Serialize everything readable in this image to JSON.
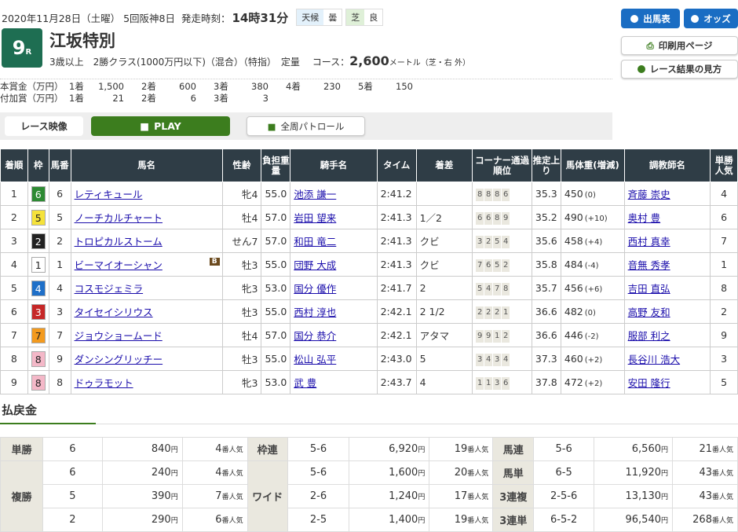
{
  "header": {
    "date": "2020年11月28日（土曜）",
    "meeting": "5回阪神8日",
    "start_label": "発走時刻：",
    "start_time": "14時31分",
    "weather_label": "天候",
    "weather": "曇",
    "surface_label": "芝",
    "condition": "良",
    "race_no": "9",
    "race_suffix": "R",
    "race_name": "江坂特別",
    "conditions": "3歳以上　2勝クラス(1000万円以下)（混合）（特指）　定量",
    "course_label": "コース：",
    "distance": "2,600",
    "course_unit": "メートル（芝・右 外）"
  },
  "prize": {
    "main_label": "本賞金（万円）",
    "main": [
      [
        "1着",
        "1,500"
      ],
      [
        "2着",
        "600"
      ],
      [
        "3着",
        "380"
      ],
      [
        "4着",
        "230"
      ],
      [
        "5着",
        "150"
      ]
    ],
    "extra_label": "付加賞（万円）",
    "extra": [
      [
        "1着",
        "21"
      ],
      [
        "2着",
        "6"
      ],
      [
        "3着",
        "3"
      ]
    ]
  },
  "buttons": {
    "entries": "出馬表",
    "odds": "オッズ",
    "print": "印刷用ページ",
    "howto": "レース結果の見方"
  },
  "video": {
    "label": "レース映像",
    "play": "PLAY",
    "patrol": "全周パトロール"
  },
  "colors": {
    "blue": "#1a6dc3",
    "green": "#3c7d1e",
    "dark": "#2f3d46"
  },
  "table": {
    "headers": [
      "着順",
      "枠",
      "馬番",
      "馬名",
      "性齢",
      "負担重量",
      "騎手名",
      "タイム",
      "着差",
      "コーナー通過順位",
      "推定上り",
      "馬体重(増減)",
      "調教師名",
      "単勝人気"
    ],
    "rows": [
      [
        "1",
        "6",
        "6",
        "レティキュール",
        "",
        "牝4",
        "55.0",
        "池添 謙一",
        "2:41.2",
        "",
        "8 8 8 6",
        "35.3",
        "450",
        "(0)",
        "斉藤 崇史",
        "4"
      ],
      [
        "2",
        "5",
        "5",
        "ノーチカルチャート",
        "",
        "牡4",
        "57.0",
        "岩田 望来",
        "2:41.3",
        "1／2",
        "6 6 8 9",
        "35.2",
        "490",
        "(+10)",
        "奥村 豊",
        "6"
      ],
      [
        "3",
        "2",
        "2",
        "トロピカルストーム",
        "",
        "せん7",
        "57.0",
        "和田 竜二",
        "2:41.3",
        "クビ",
        "3 2 5 4",
        "35.6",
        "458",
        "(+4)",
        "西村 真幸",
        "7"
      ],
      [
        "4",
        "1",
        "1",
        "ビーマイオーシャン",
        "B",
        "牡3",
        "55.0",
        "団野 大成",
        "2:41.3",
        "クビ",
        "7 6 5 2",
        "35.8",
        "484",
        "(-4)",
        "音無 秀孝",
        "1"
      ],
      [
        "5",
        "4",
        "4",
        "コスモジェミラ",
        "",
        "牝3",
        "53.0",
        "国分 優作",
        "2:41.7",
        "2",
        "5 4 7 8",
        "35.7",
        "456",
        "(+6)",
        "吉田 直弘",
        "8"
      ],
      [
        "6",
        "3",
        "3",
        "タイセイシリウス",
        "",
        "牡3",
        "55.0",
        "西村 淳也",
        "2:42.1",
        "2 1/2",
        "2 2 2 1",
        "36.6",
        "482",
        "(0)",
        "高野 友和",
        "2"
      ],
      [
        "7",
        "7",
        "7",
        "ジョウショームード",
        "",
        "牡4",
        "57.0",
        "国分 恭介",
        "2:42.1",
        "アタマ",
        "9 9 1 2",
        "36.6",
        "446",
        "(-2)",
        "服部 利之",
        "9"
      ],
      [
        "8",
        "8",
        "9",
        "ダンシングリッチー",
        "",
        "牡3",
        "55.0",
        "松山 弘平",
        "2:43.0",
        "5",
        "3 4 3 4",
        "37.3",
        "460",
        "(+2)",
        "長谷川 浩大",
        "3"
      ],
      [
        "9",
        "8",
        "8",
        "ドゥラモット",
        "",
        "牝3",
        "53.0",
        "武 豊",
        "2:43.7",
        "4",
        "1 1 3 6",
        "37.8",
        "472",
        "(+2)",
        "安田 隆行",
        "5"
      ]
    ]
  },
  "waku_colors": {
    "1": "#ffffff",
    "2": "#222222",
    "3": "#c62727",
    "4": "#1e6fc8",
    "5": "#f5e23a",
    "6": "#2d8a33",
    "7": "#f39a1e",
    "8": "#f4b8c8"
  },
  "payout": {
    "title": "払戻金",
    "yen": "円",
    "pop_suffix": "番人気",
    "rows": [
      [
        [
          "単勝",
          "6",
          "840",
          "4"
        ],
        [
          "枠連",
          "5-6",
          "6,920",
          "19"
        ],
        [
          "馬連",
          "5-6",
          "6,560",
          "21"
        ]
      ],
      [
        [
          "複勝",
          "6",
          "240",
          "4"
        ],
        [
          "ワイド",
          "5-6",
          "1,600",
          "20"
        ],
        [
          "馬単",
          "6-5",
          "11,920",
          "43"
        ]
      ],
      [
        [
          null,
          "5",
          "390",
          "7"
        ],
        [
          null,
          "2-6",
          "1,240",
          "17"
        ],
        [
          "3連複",
          "2-5-6",
          "13,130",
          "43"
        ]
      ],
      [
        [
          null,
          "2",
          "290",
          "6"
        ],
        [
          null,
          "2-5",
          "1,400",
          "19"
        ],
        [
          "3連単",
          "6-5-2",
          "96,540",
          "268"
        ]
      ]
    ]
  }
}
